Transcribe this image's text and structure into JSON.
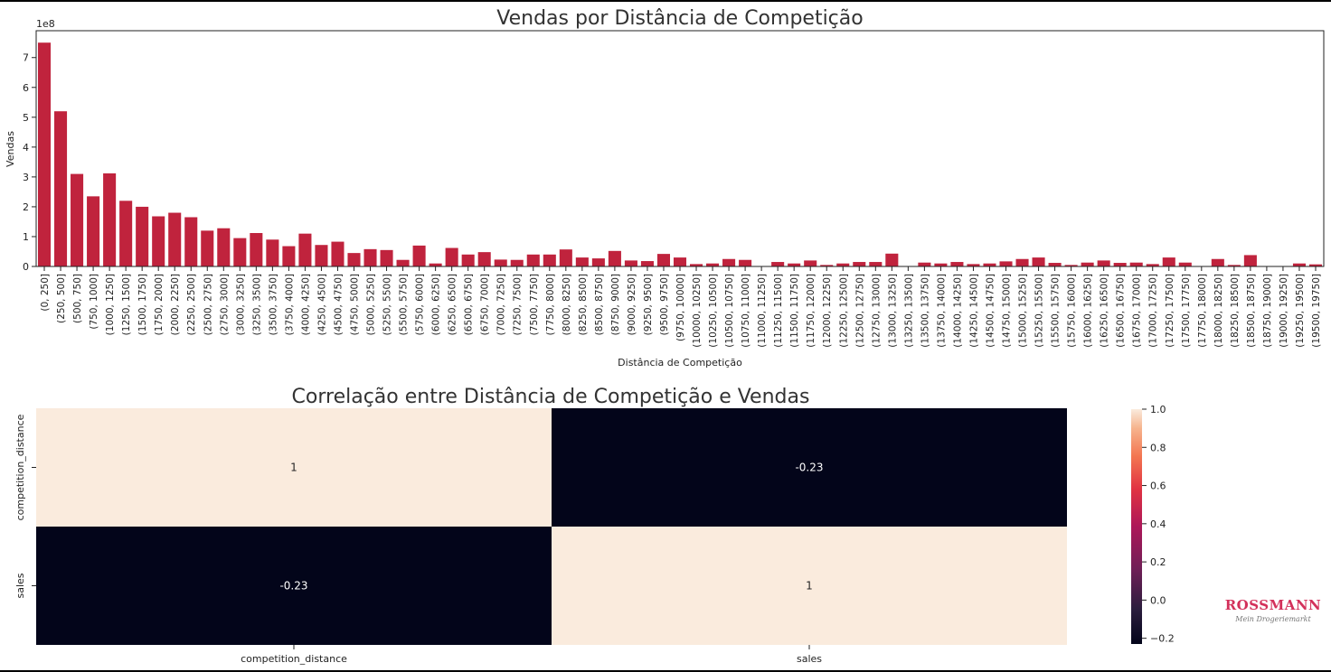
{
  "chart_data": [
    {
      "type": "bar",
      "title": "Vendas por Distância de Competição",
      "xlabel": "Distância de Competição",
      "ylabel": "Vendas",
      "offset_text": "1e8",
      "ylim": [
        0,
        7.9
      ],
      "yticks": [
        0,
        1,
        2,
        3,
        4,
        5,
        6,
        7
      ],
      "bar_color": "#c0233d",
      "categories": [
        "(0, 250]",
        "(250, 500]",
        "(500, 750]",
        "(750, 1000]",
        "(1000, 1250]",
        "(1250, 1500]",
        "(1500, 1750]",
        "(1750, 2000]",
        "(2000, 2250]",
        "(2250, 2500]",
        "(2500, 2750]",
        "(2750, 3000]",
        "(3000, 3250]",
        "(3250, 3500]",
        "(3500, 3750]",
        "(3750, 4000]",
        "(4000, 4250]",
        "(4250, 4500]",
        "(4500, 4750]",
        "(4750, 5000]",
        "(5000, 5250]",
        "(5250, 5500]",
        "(5500, 5750]",
        "(5750, 6000]",
        "(6000, 6250]",
        "(6250, 6500]",
        "(6500, 6750]",
        "(6750, 7000]",
        "(7000, 7250]",
        "(7250, 7500]",
        "(7500, 7750]",
        "(7750, 8000]",
        "(8000, 8250]",
        "(8250, 8500]",
        "(8500, 8750]",
        "(8750, 9000]",
        "(9000, 9250]",
        "(9250, 9500]",
        "(9500, 9750]",
        "(9750, 10000]",
        "(10000, 10250]",
        "(10250, 10500]",
        "(10500, 10750]",
        "(10750, 11000]",
        "(11000, 11250]",
        "(11250, 11500]",
        "(11500, 11750]",
        "(11750, 12000]",
        "(12000, 12250]",
        "(12250, 12500]",
        "(12500, 12750]",
        "(12750, 13000]",
        "(13000, 13250]",
        "(13250, 13500]",
        "(13500, 13750]",
        "(13750, 14000]",
        "(14000, 14250]",
        "(14250, 14500]",
        "(14500, 14750]",
        "(14750, 15000]",
        "(15000, 15250]",
        "(15250, 15500]",
        "(15500, 15750]",
        "(15750, 16000]",
        "(16000, 16250]",
        "(16250, 16500]",
        "(16500, 16750]",
        "(16750, 17000]",
        "(17000, 17250]",
        "(17250, 17500]",
        "(17500, 17750]",
        "(17750, 18000]",
        "(18000, 18250]",
        "(18250, 18500]",
        "(18500, 18750]",
        "(18750, 19000]",
        "(19000, 19250]",
        "(19250, 19500]",
        "(19500, 19750]"
      ],
      "values": [
        7.5,
        5.2,
        3.1,
        2.35,
        3.12,
        2.2,
        2.0,
        1.68,
        1.8,
        1.65,
        1.2,
        1.28,
        0.95,
        1.12,
        0.9,
        0.68,
        1.1,
        0.72,
        0.83,
        0.45,
        0.58,
        0.55,
        0.22,
        0.7,
        0.1,
        0.62,
        0.4,
        0.48,
        0.23,
        0.22,
        0.4,
        0.4,
        0.57,
        0.3,
        0.27,
        0.52,
        0.2,
        0.18,
        0.42,
        0.3,
        0.08,
        0.1,
        0.25,
        0.22,
        0.0,
        0.15,
        0.1,
        0.2,
        0.05,
        0.1,
        0.15,
        0.15,
        0.43,
        0.0,
        0.13,
        0.1,
        0.15,
        0.08,
        0.1,
        0.17,
        0.25,
        0.3,
        0.12,
        0.05,
        0.13,
        0.2,
        0.12,
        0.13,
        0.08,
        0.3,
        0.13,
        0.0,
        0.25,
        0.05,
        0.38,
        0.0,
        0.0,
        0.1,
        0.07
      ]
    },
    {
      "type": "heatmap",
      "title": "Correlação entre Distância de Competição e Vendas",
      "row_labels": [
        "competition_distance",
        "sales"
      ],
      "col_labels": [
        "competition_distance",
        "sales"
      ],
      "values": [
        [
          1,
          -0.23
        ],
        [
          -0.23,
          1
        ]
      ],
      "annotations": [
        [
          "1",
          "-0.23"
        ],
        [
          "-0.23",
          "1"
        ]
      ],
      "vmin": -0.23,
      "vmax": 1.0,
      "colorbar_ticks": [
        "1.0",
        "0.8",
        "0.6",
        "0.4",
        "0.2",
        "0.0",
        "−0.2"
      ],
      "colorbar_tick_values": [
        1.0,
        0.8,
        0.6,
        0.4,
        0.2,
        0.0,
        -0.2
      ],
      "colors": {
        "high": "#faebdd",
        "low": "#03051a"
      }
    }
  ],
  "logo": {
    "text": "ROSSMANN",
    "subtitle": "Mein Drogeriemarkt"
  }
}
